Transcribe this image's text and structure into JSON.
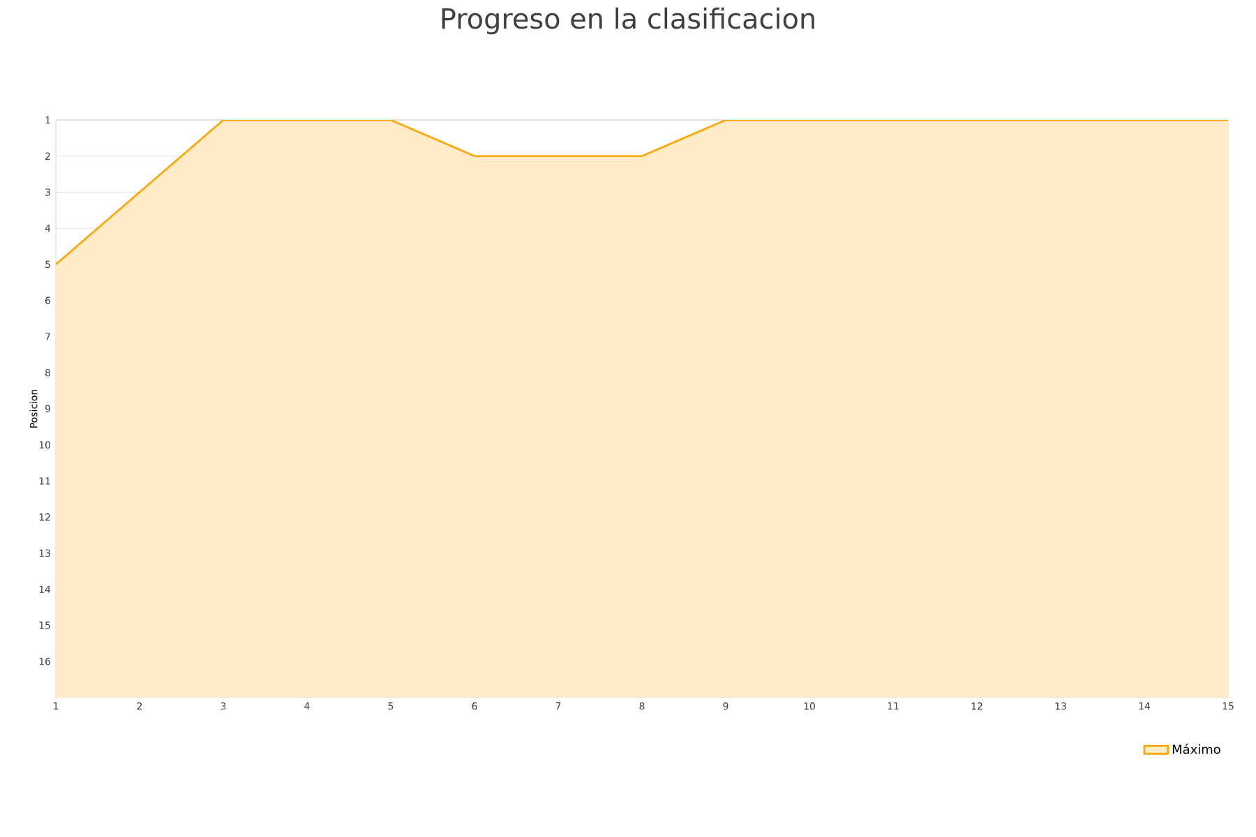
{
  "chart_data": {
    "type": "area",
    "title": "Progreso en la clasificacion",
    "ylabel": "Posicion",
    "x": [
      1,
      2,
      3,
      4,
      5,
      6,
      7,
      8,
      9,
      10,
      11,
      12,
      13,
      14,
      15
    ],
    "series": [
      {
        "name": "Máximo",
        "color": "#ffa500",
        "values": [
          5,
          3,
          1,
          1,
          1,
          2,
          2,
          2,
          1,
          1,
          1,
          1,
          1,
          1,
          1
        ]
      }
    ],
    "xlim": [
      1,
      15
    ],
    "ylim": [
      17,
      1
    ],
    "xticks": [
      1,
      2,
      3,
      4,
      5,
      6,
      7,
      8,
      9,
      10,
      11,
      12,
      13,
      14,
      15
    ],
    "yticks": [
      1,
      2,
      3,
      4,
      5,
      6,
      7,
      8,
      9,
      10,
      11,
      12,
      13,
      14,
      15,
      16
    ],
    "grid": "y",
    "legend": "bottom right",
    "marker": "none",
    "line_style": "solid"
  }
}
